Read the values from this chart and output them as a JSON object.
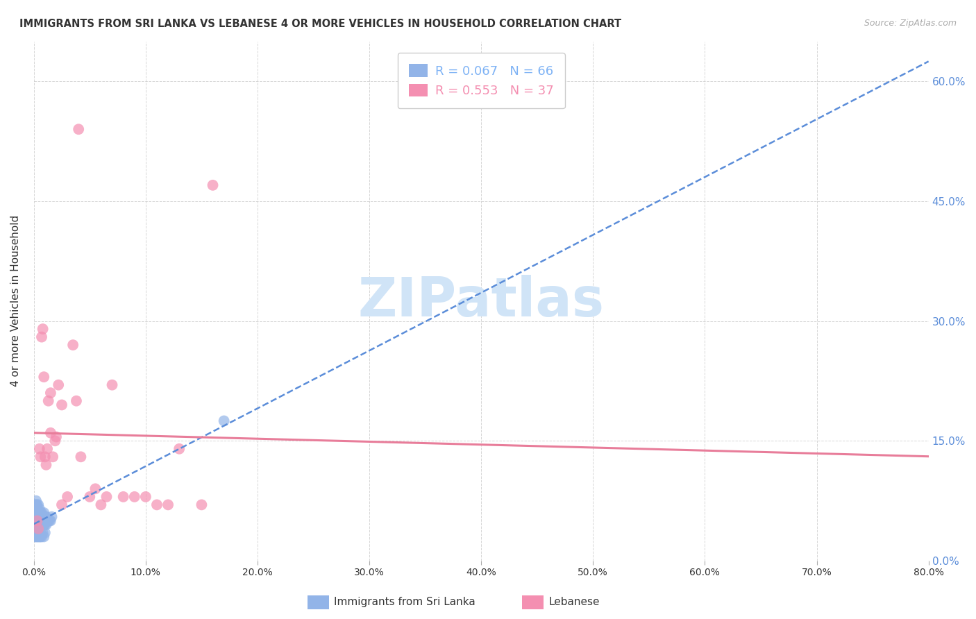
{
  "title": "IMMIGRANTS FROM SRI LANKA VS LEBANESE 4 OR MORE VEHICLES IN HOUSEHOLD CORRELATION CHART",
  "source": "Source: ZipAtlas.com",
  "ylabel": "4 or more Vehicles in Household",
  "xlim": [
    0.0,
    0.8
  ],
  "ylim": [
    0.0,
    0.65
  ],
  "yticks": [
    0.0,
    0.15,
    0.3,
    0.45,
    0.6
  ],
  "xticks": [
    0.0,
    0.1,
    0.2,
    0.3,
    0.4,
    0.5,
    0.6,
    0.7,
    0.8
  ],
  "legend_entries": [
    {
      "label": "R = 0.067   N = 66",
      "color": "#7fb3f5"
    },
    {
      "label": "R = 0.553   N = 37",
      "color": "#f48fb1"
    }
  ],
  "sri_lanka_R": 0.067,
  "sri_lanka_N": 66,
  "lebanese_R": 0.553,
  "lebanese_N": 37,
  "sri_lanka_color": "#92b4e8",
  "lebanese_color": "#f48fb1",
  "sri_lanka_line_color": "#5b8dd9",
  "lebanese_line_color": "#e87d9a",
  "watermark_color": "#d0e4f7",
  "background_color": "#ffffff",
  "grid_color": "#cccccc",
  "tick_label_color_y_right": "#5b8dd9",
  "sri_lanka_x": [
    0.001,
    0.001,
    0.001,
    0.001,
    0.001,
    0.002,
    0.002,
    0.002,
    0.002,
    0.002,
    0.002,
    0.003,
    0.003,
    0.003,
    0.003,
    0.003,
    0.003,
    0.004,
    0.004,
    0.004,
    0.004,
    0.004,
    0.005,
    0.005,
    0.005,
    0.005,
    0.005,
    0.006,
    0.006,
    0.006,
    0.006,
    0.007,
    0.007,
    0.007,
    0.007,
    0.008,
    0.008,
    0.008,
    0.009,
    0.009,
    0.009,
    0.01,
    0.01,
    0.011,
    0.011,
    0.012,
    0.013,
    0.014,
    0.015,
    0.016,
    0.001,
    0.001,
    0.002,
    0.002,
    0.003,
    0.003,
    0.004,
    0.004,
    0.005,
    0.006,
    0.006,
    0.007,
    0.008,
    0.009,
    0.01,
    0.17
  ],
  "sri_lanka_y": [
    0.05,
    0.055,
    0.06,
    0.065,
    0.07,
    0.05,
    0.055,
    0.06,
    0.065,
    0.07,
    0.075,
    0.045,
    0.05,
    0.055,
    0.06,
    0.065,
    0.07,
    0.045,
    0.05,
    0.055,
    0.06,
    0.07,
    0.045,
    0.05,
    0.055,
    0.06,
    0.065,
    0.045,
    0.05,
    0.055,
    0.06,
    0.045,
    0.05,
    0.055,
    0.06,
    0.045,
    0.05,
    0.055,
    0.045,
    0.05,
    0.06,
    0.045,
    0.055,
    0.045,
    0.055,
    0.05,
    0.05,
    0.05,
    0.05,
    0.055,
    0.03,
    0.035,
    0.03,
    0.035,
    0.03,
    0.035,
    0.03,
    0.035,
    0.03,
    0.03,
    0.035,
    0.03,
    0.035,
    0.03,
    0.035,
    0.175
  ],
  "lebanese_x": [
    0.003,
    0.004,
    0.005,
    0.006,
    0.007,
    0.008,
    0.009,
    0.01,
    0.011,
    0.012,
    0.013,
    0.015,
    0.017,
    0.019,
    0.022,
    0.025,
    0.03,
    0.035,
    0.038,
    0.042,
    0.05,
    0.055,
    0.06,
    0.065,
    0.07,
    0.08,
    0.09,
    0.1,
    0.11,
    0.12,
    0.13,
    0.04,
    0.015,
    0.02,
    0.025,
    0.16,
    0.15
  ],
  "lebanese_y": [
    0.05,
    0.04,
    0.14,
    0.13,
    0.28,
    0.29,
    0.23,
    0.13,
    0.12,
    0.14,
    0.2,
    0.16,
    0.13,
    0.15,
    0.22,
    0.07,
    0.08,
    0.27,
    0.2,
    0.13,
    0.08,
    0.09,
    0.07,
    0.08,
    0.22,
    0.08,
    0.08,
    0.08,
    0.07,
    0.07,
    0.14,
    0.54,
    0.21,
    0.155,
    0.195,
    0.47,
    0.07
  ]
}
